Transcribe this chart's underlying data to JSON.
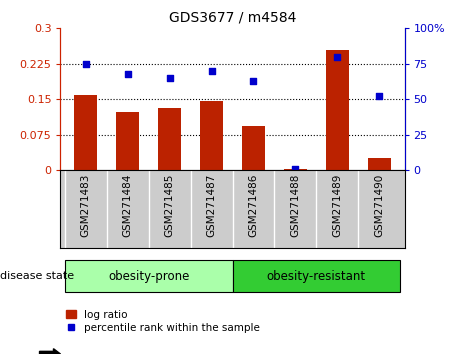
{
  "title": "GDS3677 / m4584",
  "categories": [
    "GSM271483",
    "GSM271484",
    "GSM271485",
    "GSM271487",
    "GSM271486",
    "GSM271488",
    "GSM271489",
    "GSM271490"
  ],
  "log_ratio": [
    0.158,
    0.122,
    0.132,
    0.147,
    0.093,
    0.002,
    0.255,
    0.025
  ],
  "percentile_rank": [
    75,
    68,
    65,
    70,
    63,
    1,
    80,
    52
  ],
  "bar_color": "#bb2200",
  "dot_color": "#0000cc",
  "ylim_left": [
    0,
    0.3
  ],
  "ylim_right": [
    0,
    100
  ],
  "yticks_left": [
    0,
    0.075,
    0.15,
    0.225,
    0.3
  ],
  "yticks_right": [
    0,
    25,
    50,
    75,
    100
  ],
  "ytick_labels_left": [
    "0",
    "0.075",
    "0.15",
    "0.225",
    "0.3"
  ],
  "ytick_labels_right": [
    "0",
    "25",
    "50",
    "75",
    "100%"
  ],
  "hlines": [
    0.075,
    0.15,
    0.225
  ],
  "group1_label": "obesity-prone",
  "group2_label": "obesity-resistant",
  "group1_indices": [
    0,
    1,
    2,
    3
  ],
  "group2_indices": [
    4,
    5,
    6,
    7
  ],
  "group1_color": "#aaffaa",
  "group2_color": "#33cc33",
  "disease_state_label": "disease state",
  "legend_bar_label": "log ratio",
  "legend_dot_label": "percentile rank within the sample",
  "bar_width": 0.55,
  "background_color": "#ffffff",
  "tick_bg_color": "#cccccc",
  "tick_label_color_left": "#cc2200",
  "tick_label_color_right": "#0000cc",
  "tick_fontsize": 8,
  "bar_fontsize": 7.5,
  "title_fontsize": 10,
  "legend_fontsize": 7.5
}
